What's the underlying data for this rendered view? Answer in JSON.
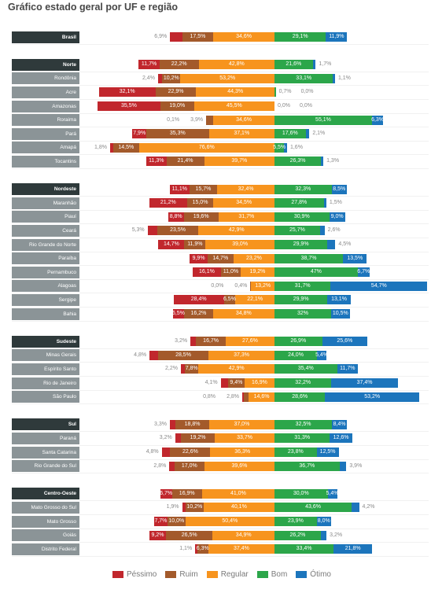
{
  "chart_data": {
    "type": "bar",
    "orientation": "horizontal",
    "stacked": true,
    "legend": "bottom",
    "title": "Gráfico estado geral por UF e região",
    "series": [
      {
        "name": "Péssimo",
        "color": "#c1272d"
      },
      {
        "name": "Ruim",
        "color": "#a35a2b"
      },
      {
        "name": "Regular",
        "color": "#f7941e"
      },
      {
        "name": "Bom",
        "color": "#2ca64a"
      },
      {
        "name": "Ótimo",
        "color": "#1c75bc"
      }
    ],
    "groups": [
      {
        "region": {
          "label": "Brasil",
          "values": [
            6.9,
            17.5,
            34.6,
            29.1,
            11.9
          ],
          "labels": [
            "6,9%",
            "17,5%",
            "34,6%",
            "29,1%",
            "11,9%"
          ]
        },
        "states": []
      },
      {
        "region": {
          "label": "Norte",
          "values": [
            11.7,
            22.2,
            42.8,
            21.6,
            1.7
          ],
          "labels": [
            "11,7%",
            "22,2%",
            "42,8%",
            "21,6%",
            "1,7%"
          ]
        },
        "states": [
          {
            "label": "Rondônia",
            "values": [
              2.4,
              10.2,
              53.2,
              33.1,
              1.1
            ],
            "labels": [
              "2,4%",
              "10,2%",
              "53,2%",
              "33,1%",
              "1,1%"
            ]
          },
          {
            "label": "Acre",
            "values": [
              32.1,
              22.9,
              44.3,
              0.7,
              0.0
            ],
            "labels": [
              "32,1%",
              "22,9%",
              "44,3%",
              "0,7%",
              "0,0%"
            ]
          },
          {
            "label": "Amazonas",
            "values": [
              35.5,
              19.0,
              45.5,
              0.0,
              0.0
            ],
            "labels": [
              "35,5%",
              "19,0%",
              "45,5%",
              "0,0%",
              "0,0%"
            ]
          },
          {
            "label": "Roraima",
            "values": [
              0.1,
              3.9,
              34.6,
              55.1,
              6.3
            ],
            "labels": [
              "0,1%",
              "3,9%",
              "34,6%",
              "55,1%",
              "6,3%"
            ]
          },
          {
            "label": "Pará",
            "values": [
              7.9,
              35.3,
              37.1,
              17.6,
              2.1
            ],
            "labels": [
              "7,9%",
              "35,3%",
              "37,1%",
              "17,6%",
              "2,1%"
            ]
          },
          {
            "label": "Amapá",
            "values": [
              1.8,
              14.5,
              76.6,
              5.5,
              1.6
            ],
            "labels": [
              "1,8%",
              "14,5%",
              "76,6%",
              "5,5%",
              "1,6%"
            ]
          },
          {
            "label": "Tocantins",
            "values": [
              11.3,
              21.4,
              39.7,
              26.3,
              1.3
            ],
            "labels": [
              "11,3%",
              "21,4%",
              "39,7%",
              "26,3%",
              "1,3%"
            ]
          }
        ]
      },
      {
        "region": {
          "label": "Nordeste",
          "values": [
            11.1,
            15.7,
            32.4,
            32.3,
            8.5
          ],
          "labels": [
            "11,1%",
            "15,7%",
            "32,4%",
            "32,3%",
            "8,5%"
          ]
        },
        "states": [
          {
            "label": "Maranhão",
            "values": [
              21.2,
              15.0,
              34.5,
              27.8,
              1.5
            ],
            "labels": [
              "21,2%",
              "15,0%",
              "34,5%",
              "27,8%",
              "1,5%"
            ]
          },
          {
            "label": "Piauí",
            "values": [
              8.8,
              19.6,
              31.7,
              30.9,
              9.0
            ],
            "labels": [
              "8,8%",
              "19,6%",
              "31,7%",
              "30,9%",
              "9,0%"
            ]
          },
          {
            "label": "Ceará",
            "values": [
              5.3,
              23.5,
              42.9,
              25.7,
              2.6
            ],
            "labels": [
              "5,3%",
              "23,5%",
              "42,9%",
              "25,7%",
              "2,6%"
            ]
          },
          {
            "label": "Rio Grande do Norte",
            "values": [
              14.7,
              11.9,
              39.0,
              29.9,
              4.5
            ],
            "labels": [
              "14,7%",
              "11,9%",
              "39,0%",
              "29,9%",
              "4,5%"
            ]
          },
          {
            "label": "Paraíba",
            "values": [
              9.9,
              14.7,
              23.2,
              38.7,
              13.5
            ],
            "labels": [
              "9,9%",
              "14,7%",
              "23,2%",
              "38,7%",
              "13,5%"
            ]
          },
          {
            "label": "Pernambuco",
            "values": [
              16.1,
              11.0,
              19.2,
              47,
              6.7
            ],
            "labels": [
              "16,1%",
              "11,0%",
              "19,2%",
              "47%",
              "6,7%"
            ]
          },
          {
            "label": "Alagoas",
            "values": [
              0.0,
              0.4,
              13.2,
              31.7,
              54.7
            ],
            "labels": [
              "0,0%",
              "0,4%",
              "13,2%",
              "31,7%",
              "54,7%"
            ]
          },
          {
            "label": "Sergipe",
            "values": [
              28.4,
              6.5,
              22.1,
              29.9,
              13.1
            ],
            "labels": [
              "28,4%",
              "6,5%",
              "22,1%",
              "29,9%",
              "13,1%"
            ]
          },
          {
            "label": "Bahia",
            "values": [
              6.5,
              16.2,
              34.8,
              32,
              10.5
            ],
            "labels": [
              "6,5%",
              "16,2%",
              "34,8%",
              "32%",
              "10,5%"
            ]
          }
        ]
      },
      {
        "region": {
          "label": "Sudeste",
          "values": [
            3.2,
            16.7,
            27.6,
            26.9,
            25.6
          ],
          "labels": [
            "3,2%",
            "16,7%",
            "27,6%",
            "26,9%",
            "25,6%"
          ]
        },
        "states": [
          {
            "label": "Minas Gerais",
            "values": [
              4.8,
              28.5,
              37.3,
              24.0,
              5.4
            ],
            "labels": [
              "4,8%",
              "28,5%",
              "37,3%",
              "24,0%",
              "5,4%"
            ]
          },
          {
            "label": "Espírito Santo",
            "values": [
              2.2,
              7.8,
              42.9,
              35.4,
              11.7
            ],
            "labels": [
              "2,2%",
              "7,8%",
              "42,9%",
              "35,4%",
              "11,7%"
            ]
          },
          {
            "label": "Rio de Janeiro",
            "values": [
              4.1,
              9.4,
              16.9,
              32.2,
              37.4
            ],
            "labels": [
              "4,1%",
              "9,4%",
              "16,9%",
              "32,2%",
              "37,4%"
            ]
          },
          {
            "label": "São Paulo",
            "values": [
              0.8,
              2.8,
              14.6,
              28.6,
              53.2
            ],
            "labels": [
              "0,8%",
              "2,8%",
              "14,6%",
              "28,6%",
              "53,2%"
            ]
          }
        ]
      },
      {
        "region": {
          "label": "Sul",
          "values": [
            3.3,
            18.8,
            37.0,
            32.5,
            8.4
          ],
          "labels": [
            "3,3%",
            "18,8%",
            "37,0%",
            "32,5%",
            "8,4%"
          ]
        },
        "states": [
          {
            "label": "Paraná",
            "values": [
              3.2,
              19.2,
              33.7,
              31.3,
              12.6
            ],
            "labels": [
              "3,2%",
              "19,2%",
              "33,7%",
              "31,3%",
              "12,6%"
            ]
          },
          {
            "label": "Santa Catarina",
            "values": [
              4.8,
              22.6,
              36.3,
              23.8,
              12.5
            ],
            "labels": [
              "4,8%",
              "22,6%",
              "36,3%",
              "23,8%",
              "12,5%"
            ]
          },
          {
            "label": "Rio Grande do Sul",
            "values": [
              2.8,
              17.0,
              39.6,
              36.7,
              3.9
            ],
            "labels": [
              "2,8%",
              "17,0%",
              "39,6%",
              "36,7%",
              "3,9%"
            ]
          }
        ]
      },
      {
        "region": {
          "label": "Centro-Oeste",
          "values": [
            6.7,
            16.9,
            41.0,
            30.0,
            5.4
          ],
          "labels": [
            "6,7%",
            "16,9%",
            "41,0%",
            "30,0%",
            "5,4%"
          ]
        },
        "states": [
          {
            "label": "Mato Grosso do Sul",
            "values": [
              1.9,
              10.2,
              40.1,
              43.6,
              4.2
            ],
            "labels": [
              "1,9%",
              "10,2%",
              "40,1%",
              "43,6%",
              "4,2%"
            ]
          },
          {
            "label": "Mato Grosso",
            "values": [
              7.7,
              10.0,
              50.4,
              23.9,
              8.0
            ],
            "labels": [
              "7,7%",
              "10,0%",
              "50,4%",
              "23,9%",
              "8,0%"
            ]
          },
          {
            "label": "Goiás",
            "values": [
              9.2,
              26.5,
              34.9,
              26.2,
              3.2
            ],
            "labels": [
              "9,2%",
              "26,5%",
              "34,9%",
              "26,2%",
              "3,2%"
            ]
          },
          {
            "label": "Distrito Federal",
            "values": [
              1.1,
              6.3,
              37.4,
              33.4,
              21.8
            ],
            "labels": [
              "1,1%",
              "6,3%",
              "37,4%",
              "33,4%",
              "21,8%"
            ]
          }
        ]
      }
    ]
  }
}
